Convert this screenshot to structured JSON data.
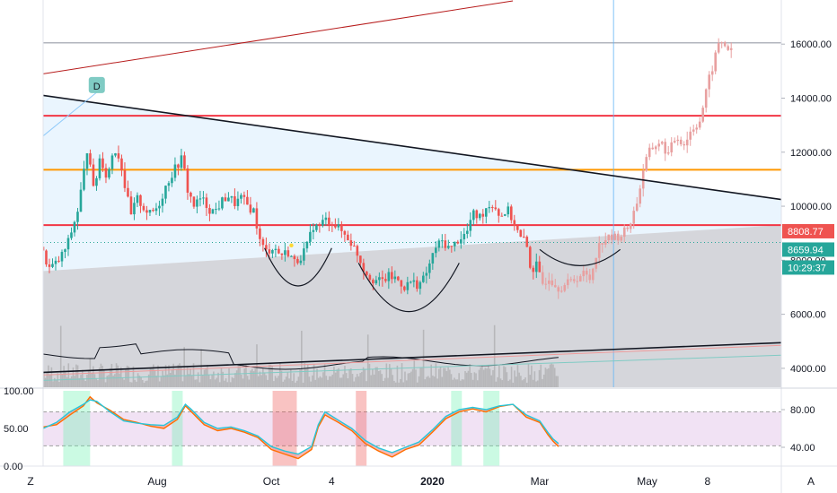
{
  "toolbar": {
    "left_button": "Z",
    "right_button": "A"
  },
  "colors": {
    "up": "#26a69a",
    "down": "#ef5350",
    "projection": "#e8a0a0",
    "resistance": "#f23645",
    "orange_level": "#ff9800",
    "grey_level": "#b2b5be",
    "trendline": "#131722",
    "wedge_fill": "#e3f2fd",
    "lower_fill": "#b2b5be",
    "last_price_tag": "#ef5350",
    "ma_tag": "#26a69a",
    "oscillator_band": "#e1bee7"
  },
  "chart_data": [
    {
      "type": "candlestick",
      "title": "",
      "y_axis": {
        "range": [
          3300,
          17500
        ],
        "ticks": [
          4000,
          6000,
          8000,
          10000,
          12000,
          14000,
          16000
        ],
        "tick_labels": [
          "4000.00",
          "6000.00",
          "8000.00",
          "10000.00",
          "12000.00",
          "14000.00",
          "16000.00"
        ]
      },
      "x_axis": {
        "unit": "weeks",
        "range": [
          0,
          55
        ],
        "tick_labels": [
          {
            "label": "Aug",
            "x": 8.5
          },
          {
            "label": "Oct",
            "x": 17.0
          },
          {
            "label": "4",
            "x": 21.5
          },
          {
            "label": "2020",
            "x": 29.0
          },
          {
            "label": "Mar",
            "x": 37.0
          },
          {
            "label": "May",
            "x": 45.0
          },
          {
            "label": "8",
            "x": 49.5
          }
        ]
      },
      "price_path": [
        [
          0,
          8500
        ],
        [
          0.7,
          7700
        ],
        [
          1.3,
          7900
        ],
        [
          2,
          8500
        ],
        [
          2.8,
          9800
        ],
        [
          3.2,
          11000
        ],
        [
          3.6,
          12400
        ],
        [
          4,
          10500
        ],
        [
          4.5,
          11900
        ],
        [
          5,
          11000
        ],
        [
          5.5,
          12200
        ],
        [
          6,
          11700
        ],
        [
          6.3,
          10800
        ],
        [
          6.8,
          9600
        ],
        [
          7.2,
          10300
        ],
        [
          7.8,
          9900
        ],
        [
          8.2,
          9700
        ],
        [
          8.8,
          10000
        ],
        [
          9.5,
          10900
        ],
        [
          10.2,
          11500
        ],
        [
          10.6,
          11800
        ],
        [
          11,
          10600
        ],
        [
          11.5,
          10000
        ],
        [
          12,
          10300
        ],
        [
          12.6,
          9900
        ],
        [
          13,
          9800
        ],
        [
          13.6,
          10200
        ],
        [
          14,
          10400
        ],
        [
          14.5,
          10100
        ],
        [
          15,
          10300
        ],
        [
          15.5,
          10000
        ],
        [
          16,
          9800
        ],
        [
          16.3,
          8800
        ],
        [
          16.8,
          8300
        ],
        [
          17.4,
          8500
        ],
        [
          17.9,
          8200
        ],
        [
          18.5,
          8300
        ],
        [
          19,
          7900
        ],
        [
          19.5,
          8200
        ],
        [
          20,
          8600
        ],
        [
          20.3,
          9300
        ],
        [
          20.7,
          9200
        ],
        [
          21.2,
          9500
        ],
        [
          21.8,
          9400
        ],
        [
          22.4,
          9100
        ],
        [
          23,
          8800
        ],
        [
          23.6,
          8300
        ],
        [
          24.2,
          7600
        ],
        [
          24.8,
          7300
        ],
        [
          25.4,
          7200
        ],
        [
          26,
          7400
        ],
        [
          26.6,
          7300
        ],
        [
          27.2,
          7000
        ],
        [
          27.6,
          7200
        ],
        [
          28.2,
          7100
        ],
        [
          28.6,
          7300
        ],
        [
          29,
          7800
        ],
        [
          29.5,
          8500
        ],
        [
          30,
          8700
        ],
        [
          30.6,
          8400
        ],
        [
          31.2,
          8800
        ],
        [
          31.8,
          9000
        ],
        [
          32.2,
          9700
        ],
        [
          32.8,
          9600
        ],
        [
          33.3,
          10000
        ],
        [
          33.8,
          10100
        ],
        [
          34.3,
          9600
        ],
        [
          34.8,
          9900
        ],
        [
          35.3,
          9400
        ],
        [
          35.8,
          8800
        ],
        [
          36.2,
          8700
        ],
        [
          36.6,
          7600
        ],
        [
          37,
          7800
        ],
        [
          37.4,
          7100
        ],
        [
          37.9,
          7400
        ],
        [
          38.6,
          7000
        ],
        [
          39.2,
          7100
        ],
        [
          39.8,
          7300
        ],
        [
          40.5,
          7500
        ],
        [
          41,
          7300
        ],
        [
          41.5,
          8400
        ],
        [
          42,
          8800
        ],
        [
          42.5,
          8800
        ],
        [
          43.2,
          8900
        ],
        [
          43.8,
          9200
        ],
        [
          44.2,
          9700
        ],
        [
          44.6,
          10400
        ],
        [
          45,
          11500
        ],
        [
          45.5,
          12100
        ],
        [
          46.2,
          12400
        ],
        [
          46.8,
          11900
        ],
        [
          47.4,
          12600
        ],
        [
          48,
          12300
        ],
        [
          48.5,
          12800
        ],
        [
          49.2,
          13200
        ],
        [
          49.8,
          14600
        ],
        [
          50.2,
          15300
        ],
        [
          50.6,
          16100
        ],
        [
          51,
          16000
        ],
        [
          51.5,
          15700
        ]
      ],
      "projection_start_x": 37.0,
      "horizontal_levels": [
        {
          "name": "resistance-high",
          "value": 13350,
          "color": "#f23645"
        },
        {
          "name": "orange-level",
          "value": 11350,
          "color": "#ff9800"
        },
        {
          "name": "support-level",
          "value": 9300,
          "color": "#f23645"
        },
        {
          "name": "top-grey",
          "value": 16050,
          "color": "#b2b5be"
        }
      ],
      "ma_value": 8659.94,
      "last_price": 8808.77,
      "price_tags": {
        "last_price": "8808.77",
        "ma": "8659.94",
        "countdown": "10:29:37"
      },
      "marker_label": "D",
      "marker_at": {
        "x": 4.0,
        "y": 14450
      },
      "trendlines": [
        {
          "name": "descending-trendline",
          "from": [
            0,
            14100
          ],
          "to": [
            55,
            10250
          ],
          "color": "#131722"
        },
        {
          "name": "lower-channel-line",
          "from": [
            0,
            3850
          ],
          "to": [
            55,
            4950
          ],
          "color": "#131722"
        },
        {
          "name": "upper-red-line",
          "from": [
            0,
            14900
          ],
          "to": [
            35,
            17600
          ],
          "color": "#b71c1c"
        }
      ],
      "cup_patterns": [
        {
          "name": "cup-1",
          "x": [
            16.5,
            21.5
          ],
          "rim": 8450,
          "bottom": 7050
        },
        {
          "name": "cup-2",
          "x": [
            23.5,
            31.0
          ],
          "rim": 7900,
          "bottom": 6100
        },
        {
          "name": "cup-3",
          "x": [
            37.0,
            43.0
          ],
          "rim": 8400,
          "bottom": 7800
        }
      ],
      "vertical_line_x": 42.5,
      "volume_panel_top": 5200
    },
    {
      "type": "line",
      "title": "",
      "left_axis": {
        "range": [
          0,
          100
        ],
        "tick_labels": [
          "100.00",
          "50.00",
          "0.00"
        ],
        "ticks": [
          100,
          50,
          0
        ]
      },
      "right_axis": {
        "range": [
          20,
          100
        ],
        "tick_labels": [
          "80.00",
          "40.00"
        ],
        "ticks": [
          80,
          40
        ]
      },
      "band": {
        "upper": 72,
        "lower": 27
      },
      "series": [
        {
          "color": "#ff6f00",
          "values": [
            [
              0,
              52
            ],
            [
              1,
              55
            ],
            [
              2,
              68
            ],
            [
              3,
              80
            ],
            [
              3.5,
              92
            ],
            [
              4,
              84
            ],
            [
              5,
              74
            ],
            [
              6,
              62
            ],
            [
              7,
              58
            ],
            [
              8,
              53
            ],
            [
              9,
              50
            ],
            [
              10,
              62
            ],
            [
              10.6,
              80
            ],
            [
              11,
              73
            ],
            [
              12,
              55
            ],
            [
              13,
              47
            ],
            [
              14,
              50
            ],
            [
              15,
              45
            ],
            [
              16,
              38
            ],
            [
              17,
              22
            ],
            [
              18,
              16
            ],
            [
              19,
              10
            ],
            [
              20,
              22
            ],
            [
              20.5,
              52
            ],
            [
              21,
              68
            ],
            [
              22,
              58
            ],
            [
              23,
              47
            ],
            [
              24,
              30
            ],
            [
              25,
              20
            ],
            [
              26,
              12
            ],
            [
              27,
              22
            ],
            [
              28,
              28
            ],
            [
              29,
              45
            ],
            [
              30,
              63
            ],
            [
              31,
              72
            ],
            [
              32,
              76
            ],
            [
              33,
              72
            ],
            [
              34,
              79
            ],
            [
              35,
              82
            ],
            [
              36,
              65
            ],
            [
              37,
              58
            ],
            [
              37.6,
              42
            ],
            [
              38,
              33
            ],
            [
              38.4,
              26
            ]
          ]
        },
        {
          "color": "#26c6da",
          "values": [
            [
              0,
              50
            ],
            [
              1,
              58
            ],
            [
              2,
              72
            ],
            [
              3,
              82
            ],
            [
              3.5,
              88
            ],
            [
              4,
              86
            ],
            [
              5,
              72
            ],
            [
              6,
              60
            ],
            [
              7,
              57
            ],
            [
              8,
              55
            ],
            [
              9,
              54
            ],
            [
              10,
              65
            ],
            [
              10.6,
              82
            ],
            [
              11,
              76
            ],
            [
              12,
              58
            ],
            [
              13,
              50
            ],
            [
              14,
              52
            ],
            [
              15,
              47
            ],
            [
              16,
              40
            ],
            [
              17,
              26
            ],
            [
              18,
              20
            ],
            [
              19,
              16
            ],
            [
              20,
              26
            ],
            [
              20.5,
              55
            ],
            [
              21,
              72
            ],
            [
              22,
              61
            ],
            [
              23,
              50
            ],
            [
              24,
              34
            ],
            [
              25,
              24
            ],
            [
              26,
              18
            ],
            [
              27,
              25
            ],
            [
              28,
              32
            ],
            [
              29,
              48
            ],
            [
              30,
              66
            ],
            [
              31,
              75
            ],
            [
              32,
              78
            ],
            [
              33,
              75
            ],
            [
              34,
              80
            ],
            [
              35,
              82
            ],
            [
              36,
              68
            ],
            [
              37,
              60
            ],
            [
              37.6,
              45
            ],
            [
              38,
              36
            ],
            [
              38.4,
              30
            ]
          ]
        }
      ],
      "highlight_zones": [
        {
          "from": 1.5,
          "to": 3.5,
          "color": "#69f0ae"
        },
        {
          "from": 9.6,
          "to": 10.4,
          "color": "#69f0ae"
        },
        {
          "from": 17.1,
          "to": 18.9,
          "color": "#ef5350"
        },
        {
          "from": 23.3,
          "to": 24.1,
          "color": "#ef5350"
        },
        {
          "from": 30.4,
          "to": 31.2,
          "color": "#69f0ae"
        },
        {
          "from": 32.8,
          "to": 34.0,
          "color": "#69f0ae"
        }
      ]
    }
  ]
}
